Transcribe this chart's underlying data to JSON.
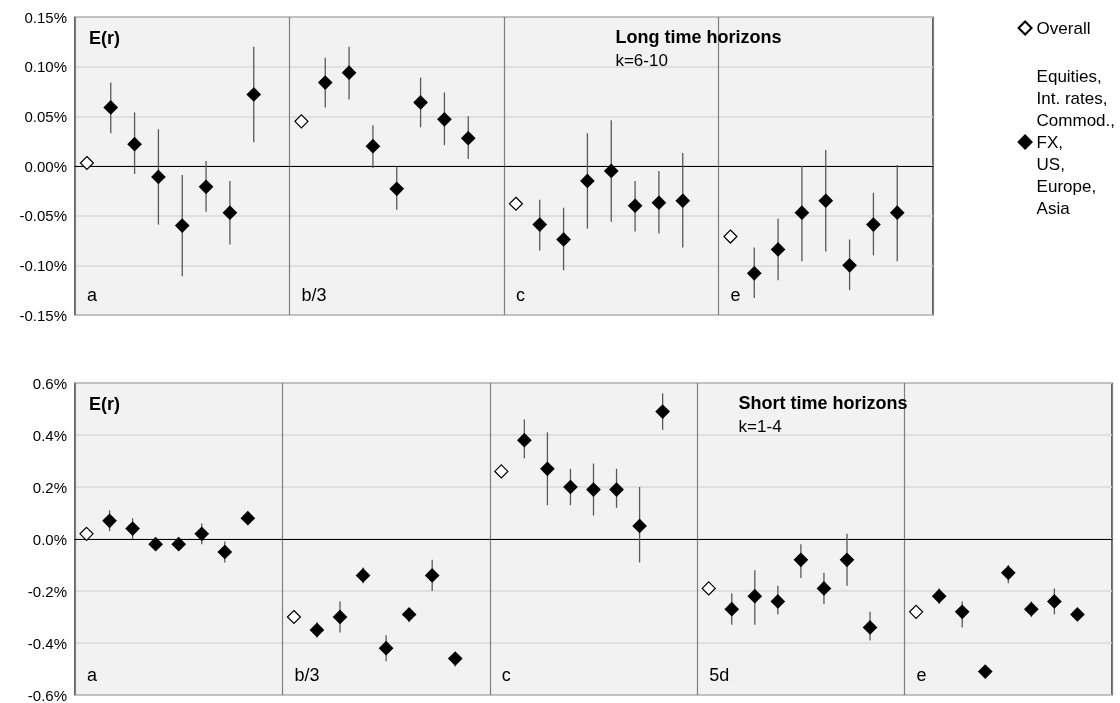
{
  "chart_data": [
    {
      "type": "scatter",
      "title": "Long time horizons",
      "subtitle": "k=6-10",
      "ylabel": "E(r)",
      "tick_labels": "y",
      "grid": true,
      "legend": "right",
      "categories": [
        null,
        null,
        null,
        null,
        null,
        null,
        null,
        null,
        null,
        null,
        null,
        null,
        null,
        null,
        null,
        null,
        null,
        null,
        null,
        null,
        null,
        null,
        null,
        null,
        null,
        null,
        null,
        null,
        null,
        null,
        null,
        null,
        null,
        null,
        null,
        null
      ],
      "ylim": [
        -0.15,
        0.15
      ],
      "yticks": [
        {
          "value": -0.15,
          "label": "-0.15%"
        },
        {
          "value": -0.1,
          "label": "-0.10%"
        },
        {
          "value": -0.05,
          "label": "-0.05%"
        },
        {
          "value": 0,
          "label": "0.00%"
        },
        {
          "value": 0.05,
          "label": "0.05%"
        },
        {
          "value": 0.1,
          "label": "0.10%"
        },
        {
          "value": 0.15,
          "label": "0.15%"
        }
      ],
      "annotations": [
        "a",
        "b/3",
        "c",
        "e"
      ],
      "series": [
        {
          "name": "Overall",
          "color": "#ffffff",
          "marker": "diamond",
          "values": [
            0.003,
            null,
            null,
            null,
            null,
            null,
            null,
            null,
            null,
            0.045,
            null,
            null,
            null,
            null,
            null,
            null,
            null,
            null,
            -0.038,
            null,
            null,
            null,
            null,
            null,
            null,
            null,
            null,
            -0.071,
            null,
            null,
            null,
            null,
            null,
            null,
            null,
            null
          ]
        },
        {
          "name": "Equities, Int. rates, Commod., FX, US, Europe, Asia",
          "color": "#000000",
          "marker": "diamond",
          "values": [
            null,
            0.059,
            0.022,
            -0.011,
            -0.06,
            -0.021,
            -0.047,
            0.072,
            null,
            null,
            0.084,
            0.094,
            0.02,
            -0.023,
            0.064,
            0.047,
            0.028,
            null,
            null,
            -0.059,
            -0.074,
            -0.015,
            -0.005,
            -0.04,
            -0.037,
            -0.035,
            null,
            null,
            -0.108,
            -0.084,
            -0.047,
            -0.035,
            -0.1,
            -0.059,
            -0.047,
            null
          ],
          "errors": [
            null,
            [
              0.033,
              0.084
            ],
            [
              -0.008,
              0.054
            ],
            [
              -0.059,
              0.037
            ],
            [
              -0.111,
              -0.009
            ],
            [
              -0.046,
              0.005
            ],
            [
              -0.079,
              -0.015
            ],
            [
              0.024,
              0.12
            ],
            null,
            null,
            [
              0.059,
              0.109
            ],
            [
              0.067,
              0.12
            ],
            [
              -0.002,
              0.041
            ],
            [
              -0.044,
              -0.001
            ],
            [
              0.039,
              0.089
            ],
            [
              0.021,
              0.074
            ],
            [
              0.007,
              0.05
            ],
            null,
            null,
            [
              -0.085,
              -0.034
            ],
            [
              -0.105,
              -0.042
            ],
            [
              -0.063,
              0.033
            ],
            [
              -0.056,
              0.046
            ],
            [
              -0.066,
              -0.015
            ],
            [
              -0.068,
              -0.005
            ],
            [
              -0.082,
              0.013
            ],
            null,
            null,
            [
              -0.133,
              -0.082
            ],
            [
              -0.115,
              -0.053
            ],
            [
              -0.096,
              0
            ],
            [
              -0.086,
              0.016
            ],
            [
              -0.125,
              -0.074
            ],
            [
              -0.09,
              -0.027
            ],
            [
              -0.096,
              0.001
            ],
            null
          ]
        }
      ]
    },
    {
      "type": "scatter",
      "title": "Short time horizons",
      "subtitle": "k=1-4",
      "ylabel": "E(r)",
      "tick_labels": "y",
      "grid": true,
      "categories": [
        null,
        null,
        null,
        null,
        null,
        null,
        null,
        null,
        null,
        null,
        null,
        null,
        null,
        null,
        null,
        null,
        null,
        null,
        null,
        null,
        null,
        null,
        null,
        null,
        null,
        null,
        null,
        null,
        null,
        null,
        null,
        null,
        null,
        null,
        null,
        null,
        null,
        null,
        null,
        null,
        null,
        null,
        null,
        null,
        null
      ],
      "ylim": [
        -0.6,
        0.6
      ],
      "yticks": [
        {
          "value": -0.6,
          "label": "-0.6%"
        },
        {
          "value": -0.4,
          "label": "-0.4%"
        },
        {
          "value": -0.2,
          "label": "-0.2%"
        },
        {
          "value": 0,
          "label": "0.0%"
        },
        {
          "value": 0.2,
          "label": "0.2%"
        },
        {
          "value": 0.4,
          "label": "0.4%"
        },
        {
          "value": 0.6,
          "label": "0.6%"
        }
      ],
      "annotations": [
        "a",
        "b/3",
        "c",
        "5d",
        "e"
      ],
      "series": [
        {
          "color": "#ffffff",
          "marker": "diamond",
          "values": [
            0.02,
            null,
            null,
            null,
            null,
            null,
            null,
            null,
            null,
            -0.3,
            null,
            null,
            null,
            null,
            null,
            null,
            null,
            null,
            0.26,
            null,
            null,
            null,
            null,
            null,
            null,
            null,
            null,
            -0.19,
            null,
            null,
            null,
            null,
            null,
            null,
            null,
            null,
            -0.28,
            null,
            null,
            null,
            null,
            null,
            null,
            null,
            null
          ]
        },
        {
          "color": "#000000",
          "marker": "diamond",
          "values": [
            null,
            0.07,
            0.04,
            -0.02,
            -0.02,
            0.02,
            -0.05,
            0.08,
            null,
            null,
            -0.35,
            -0.3,
            -0.14,
            -0.42,
            -0.29,
            -0.14,
            -0.46,
            null,
            null,
            0.38,
            0.27,
            0.2,
            0.19,
            0.19,
            0.05,
            0.49,
            null,
            null,
            -0.27,
            -0.22,
            -0.24,
            -0.08,
            -0.19,
            -0.08,
            -0.34,
            null,
            null,
            -0.22,
            -0.28,
            -0.51,
            -0.13,
            -0.27,
            -0.24,
            -0.29,
            null
          ],
          "errors": [
            null,
            [
              0.03,
              0.11
            ],
            [
              0,
              0.08
            ],
            [
              -0.04,
              0
            ],
            null,
            [
              -0.02,
              0.06
            ],
            [
              -0.09,
              -0.01
            ],
            [
              0.06,
              0.1
            ],
            null,
            null,
            [
              -0.38,
              -0.32
            ],
            [
              -0.36,
              -0.24
            ],
            [
              -0.17,
              -0.11
            ],
            [
              -0.47,
              -0.37
            ],
            [
              -0.32,
              -0.27
            ],
            [
              -0.2,
              -0.08
            ],
            [
              -0.49,
              -0.44
            ],
            null,
            null,
            [
              0.31,
              0.46
            ],
            [
              0.13,
              0.41
            ],
            [
              0.13,
              0.27
            ],
            [
              0.09,
              0.29
            ],
            [
              0.12,
              0.27
            ],
            [
              -0.09,
              0.2
            ],
            [
              0.42,
              0.56
            ],
            null,
            null,
            [
              -0.33,
              -0.21
            ],
            [
              -0.33,
              -0.12
            ],
            [
              -0.29,
              -0.18
            ],
            [
              -0.15,
              -0.02
            ],
            [
              -0.25,
              -0.13
            ],
            [
              -0.18,
              0.02
            ],
            [
              -0.39,
              -0.28
            ],
            null,
            null,
            [
              -0.25,
              -0.19
            ],
            [
              -0.34,
              -0.24
            ],
            [
              -0.53,
              -0.49
            ],
            [
              -0.17,
              -0.1
            ],
            [
              -0.3,
              -0.24
            ],
            [
              -0.29,
              -0.19
            ],
            null,
            null
          ]
        }
      ]
    }
  ]
}
